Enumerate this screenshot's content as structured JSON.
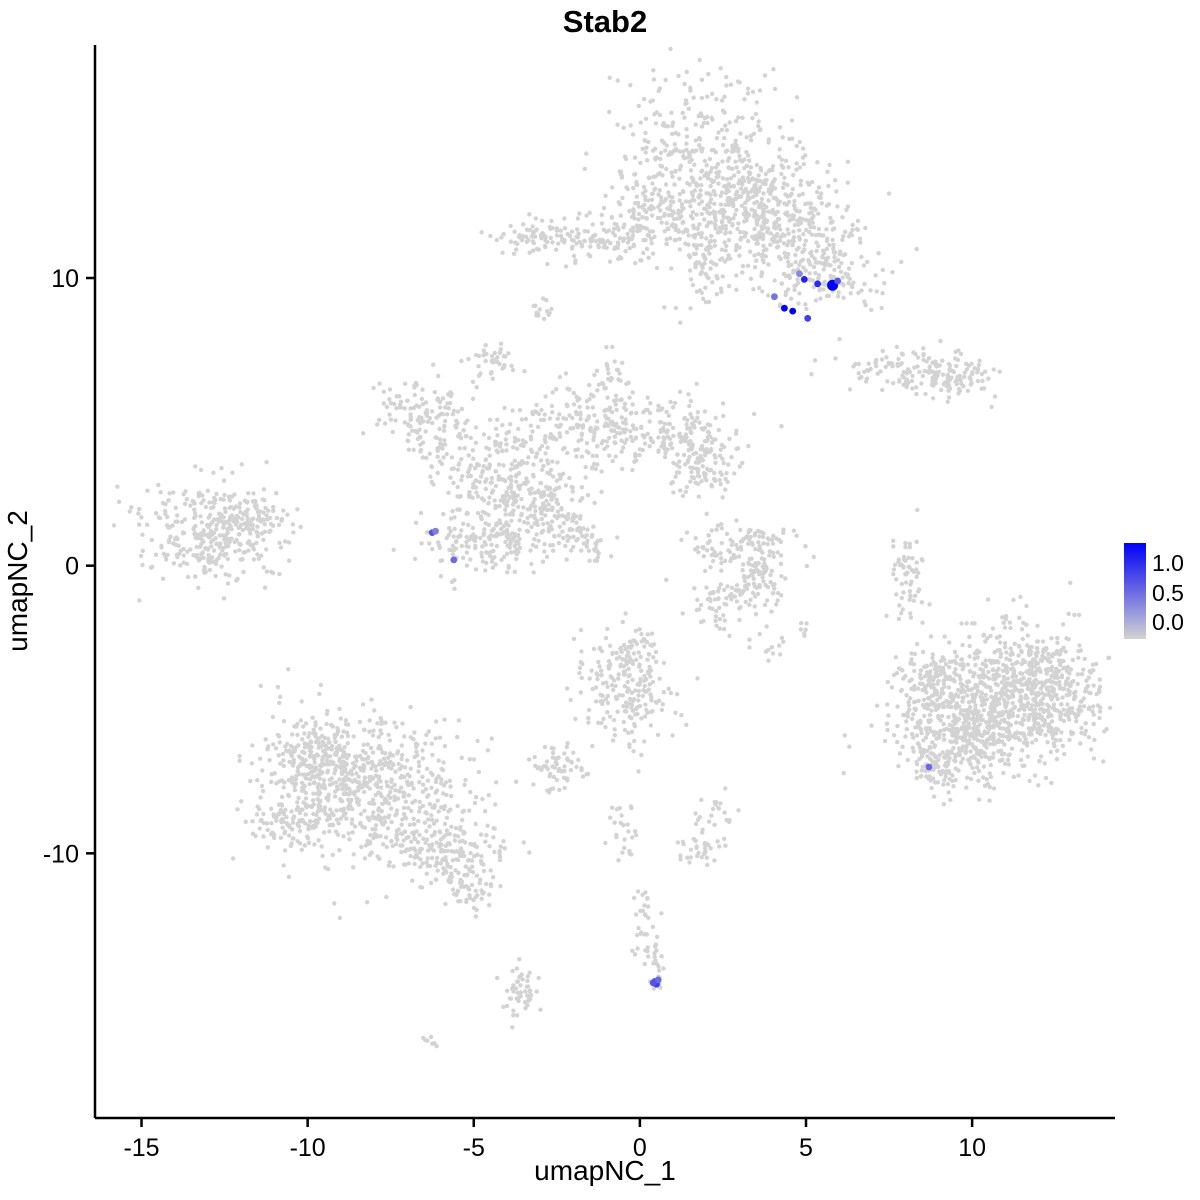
{
  "title": "Stab2",
  "chart_data": {
    "type": "scatter",
    "title": "Stab2",
    "xlabel": "umapNC_1",
    "ylabel": "umapNC_2",
    "x_ticks": [
      "-15",
      "-10",
      "-5",
      "0",
      "5",
      "10"
    ],
    "x_tick_values": [
      -15,
      -10,
      -5,
      0,
      5,
      10
    ],
    "y_ticks": [
      "10",
      "0",
      "-10"
    ],
    "y_tick_values": [
      10,
      0,
      -10
    ],
    "xlim": [
      -16.4,
      14.3
    ],
    "ylim": [
      -19.2,
      18.1
    ],
    "grid": false,
    "legend_position": "right",
    "legend_labels": [
      "1.0",
      "0.5",
      "0.0"
    ],
    "legend_values": [
      1.0,
      0.5,
      0.0
    ],
    "color_low": "#D3D3D3",
    "color_high": "#0000F5",
    "background_point_color": "#D3D3D3",
    "clusters_format": [
      "center_x",
      "center_y",
      "sd_x",
      "sd_y",
      "count"
    ],
    "clusters": [
      [
        1.8,
        13.9,
        1.6,
        1.5,
        450
      ],
      [
        3.0,
        12.6,
        1.0,
        0.8,
        180
      ],
      [
        4.6,
        11.7,
        1.1,
        0.8,
        220
      ],
      [
        5.5,
        10.1,
        0.9,
        0.6,
        140
      ],
      [
        2.0,
        10.6,
        0.5,
        0.9,
        80
      ],
      [
        0.3,
        12.0,
        0.8,
        0.6,
        90
      ],
      [
        -1.6,
        11.3,
        1.3,
        0.35,
        130
      ],
      [
        -3.0,
        11.5,
        0.4,
        0.3,
        30
      ],
      [
        -2.9,
        8.9,
        0.2,
        0.2,
        15
      ],
      [
        -4.5,
        7.2,
        0.35,
        0.3,
        40
      ],
      [
        8.3,
        6.8,
        1.1,
        0.4,
        120
      ],
      [
        9.3,
        6.5,
        0.6,
        0.35,
        60
      ],
      [
        -6.8,
        5.6,
        0.8,
        0.5,
        80
      ],
      [
        -5.9,
        4.5,
        0.6,
        0.6,
        80
      ],
      [
        -4.3,
        3.1,
        0.9,
        0.8,
        160
      ],
      [
        -2.5,
        4.4,
        0.8,
        0.8,
        120
      ],
      [
        -0.9,
        5.0,
        0.8,
        0.6,
        110
      ],
      [
        -1.0,
        6.6,
        0.3,
        0.5,
        30
      ],
      [
        1.2,
        4.5,
        0.9,
        0.6,
        150
      ],
      [
        1.9,
        3.4,
        0.6,
        0.5,
        80
      ],
      [
        -3.3,
        1.7,
        0.9,
        0.8,
        160
      ],
      [
        -4.9,
        0.8,
        0.8,
        0.6,
        130
      ],
      [
        -2.5,
        2.0,
        0.3,
        0.3,
        25
      ],
      [
        -2.0,
        1.3,
        0.3,
        0.3,
        25
      ],
      [
        -1.4,
        0.7,
        0.3,
        0.3,
        25
      ],
      [
        -13.0,
        1.2,
        1.1,
        0.9,
        320
      ],
      [
        -11.6,
        1.5,
        0.5,
        0.5,
        70
      ],
      [
        3.2,
        0.8,
        0.8,
        0.4,
        80
      ],
      [
        3.7,
        -0.3,
        0.4,
        0.5,
        60
      ],
      [
        2.9,
        -1.2,
        0.7,
        0.35,
        70
      ],
      [
        2.2,
        0.2,
        0.3,
        0.3,
        20
      ],
      [
        8.0,
        -0.2,
        0.25,
        0.9,
        60
      ],
      [
        10.8,
        -4.6,
        1.5,
        1.2,
        700
      ],
      [
        12.3,
        -4.2,
        0.8,
        0.9,
        250
      ],
      [
        9.7,
        -6.1,
        0.9,
        0.8,
        250
      ],
      [
        8.7,
        -4.2,
        0.5,
        0.7,
        90
      ],
      [
        8.9,
        -6.9,
        0.4,
        0.4,
        60
      ],
      [
        -8.2,
        -7.8,
        1.6,
        1.3,
        650
      ],
      [
        -9.7,
        -6.6,
        0.8,
        0.8,
        180
      ],
      [
        -10.5,
        -8.8,
        0.5,
        0.5,
        80
      ],
      [
        -6.0,
        -9.9,
        0.8,
        0.6,
        160
      ],
      [
        -5.1,
        -11.2,
        0.4,
        0.4,
        60
      ],
      [
        -0.5,
        -4.3,
        0.7,
        0.9,
        190
      ],
      [
        -0.2,
        -2.9,
        0.4,
        0.4,
        50
      ],
      [
        -2.6,
        -7.1,
        0.45,
        0.4,
        60
      ],
      [
        -0.5,
        -9.3,
        0.25,
        0.5,
        25
      ],
      [
        1.8,
        -9.8,
        0.4,
        0.4,
        35
      ],
      [
        2.2,
        -8.6,
        0.3,
        0.3,
        20
      ],
      [
        0.1,
        -12.4,
        0.2,
        0.6,
        30
      ],
      [
        0.5,
        -13.6,
        0.15,
        0.3,
        15
      ],
      [
        0.5,
        -14.5,
        0.15,
        0.15,
        10
      ],
      [
        -3.6,
        -14.9,
        0.25,
        0.5,
        50
      ],
      [
        -6.3,
        -16.6,
        0.15,
        0.1,
        8
      ],
      [
        3.9,
        -2.9,
        0.4,
        0.3,
        12
      ],
      [
        4.9,
        -2.2,
        0.2,
        0.2,
        6
      ],
      [
        2.3,
        -1.9,
        0.3,
        0.2,
        8
      ]
    ],
    "expressing_points_format": [
      "x",
      "y",
      "expression_0_to_1",
      "radius_optional"
    ],
    "expressing_points": [
      [
        4.8,
        10.15,
        0.35
      ],
      [
        4.95,
        9.95,
        0.85
      ],
      [
        5.35,
        9.8,
        0.8
      ],
      [
        5.8,
        9.75,
        1.0,
        5.5
      ],
      [
        5.95,
        9.9,
        0.6
      ],
      [
        4.35,
        8.95,
        1.0
      ],
      [
        4.6,
        8.85,
        1.0
      ],
      [
        5.05,
        8.6,
        0.7
      ],
      [
        4.05,
        9.35,
        0.45
      ],
      [
        -6.25,
        1.15,
        0.6
      ],
      [
        -6.15,
        1.2,
        0.4
      ],
      [
        -5.6,
        0.2,
        0.5
      ],
      [
        8.7,
        -7.0,
        0.5
      ],
      [
        0.45,
        -14.45,
        0.6
      ],
      [
        0.5,
        -14.55,
        0.7
      ],
      [
        0.55,
        -14.4,
        0.5
      ],
      [
        0.4,
        -14.5,
        0.6
      ]
    ]
  }
}
